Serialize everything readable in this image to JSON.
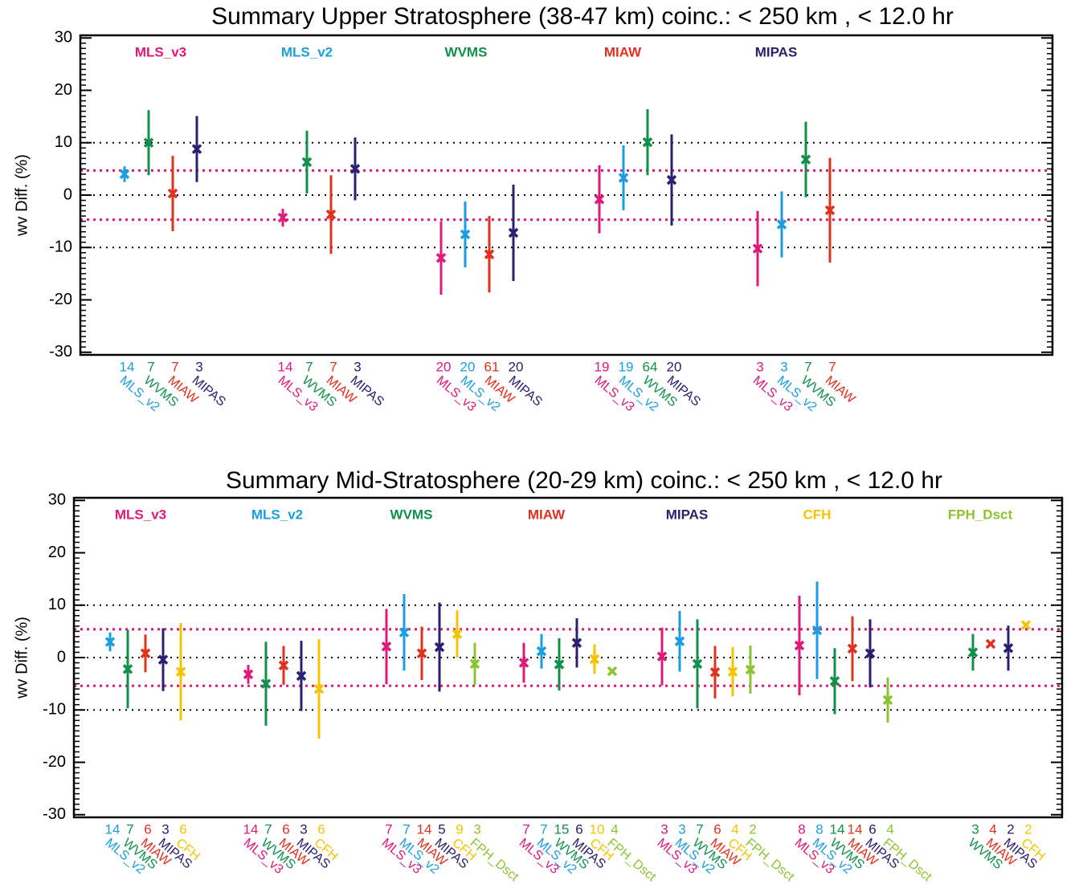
{
  "chart_data": [
    {
      "type": "errorbar",
      "title": "Summary Upper Stratosphere (38-47 km)   coinc.: < 250 km , < 12.0 hr",
      "ylabel": "wv Diff. (%)",
      "ylim": [
        -30.5,
        30.5
      ],
      "yticks": [
        -30,
        -20,
        -10,
        0,
        10,
        20,
        30
      ],
      "minor_tick_step": 1,
      "hlines": [
        {
          "value": 10,
          "color": "#000000"
        },
        {
          "value": 0,
          "color": "#000000"
        },
        {
          "value": -10,
          "color": "#000000"
        },
        {
          "value": 4.7,
          "color": "#e0187a"
        },
        {
          "value": -4.7,
          "color": "#e0187a"
        }
      ],
      "groups": [
        {
          "name": "MLS_v3",
          "color": "#e0187a",
          "members": [
            {
              "name": "MLS_v2",
              "color": "#1a9ee0",
              "n": 14,
              "value": 4,
              "err": 1.5
            },
            {
              "name": "WVMS",
              "color": "#10904a",
              "n": 7,
              "value": 10,
              "err": 6.2
            },
            {
              "name": "MIAW",
              "color": "#e0301e",
              "n": 7,
              "value": 0.3,
              "err": 7.2
            },
            {
              "name": "MIPAS",
              "color": "#2a2070",
              "n": 3,
              "value": 8.8,
              "err": 6.3
            }
          ]
        },
        {
          "name": "MLS_v2",
          "color": "#1a9ee0",
          "members": [
            {
              "name": "MLS_v3",
              "color": "#e0187a",
              "n": 14,
              "value": -4.3,
              "err": 1.7
            },
            {
              "name": "WVMS",
              "color": "#10904a",
              "n": 7,
              "value": 6.3,
              "err": 6
            },
            {
              "name": "MIAW",
              "color": "#e0301e",
              "n": 7,
              "value": -3.7,
              "err": 7.5
            },
            {
              "name": "MIPAS",
              "color": "#2a2070",
              "n": 3,
              "value": 5,
              "err": 6
            }
          ]
        },
        {
          "name": "WVMS",
          "color": "#10904a",
          "members": [
            {
              "name": "MLS_v3",
              "color": "#e0187a",
              "n": 20,
              "value": -12,
              "err": 7
            },
            {
              "name": "MLS_v2",
              "color": "#1a9ee0",
              "n": 20,
              "value": -7.5,
              "err": 6.3
            },
            {
              "name": "MIAW",
              "color": "#e0301e",
              "n": 61,
              "value": -11.3,
              "err": 7.3
            },
            {
              "name": "MIPAS",
              "color": "#2a2070",
              "n": 20,
              "value": -7.2,
              "err": 9.2
            }
          ]
        },
        {
          "name": "MIAW",
          "color": "#e0301e",
          "members": [
            {
              "name": "MLS_v3",
              "color": "#e0187a",
              "n": 19,
              "value": -0.8,
              "err": 6.5
            },
            {
              "name": "MLS_v2",
              "color": "#1a9ee0",
              "n": 19,
              "value": 3.3,
              "err": 6.2
            },
            {
              "name": "WVMS",
              "color": "#10904a",
              "n": 64,
              "value": 10.1,
              "err": 6.3
            },
            {
              "name": "MIPAS",
              "color": "#2a2070",
              "n": 20,
              "value": 2.9,
              "err": 8.7
            }
          ]
        },
        {
          "name": "MIPAS",
          "color": "#2a2070",
          "members": [
            {
              "name": "MLS_v3",
              "color": "#e0187a",
              "n": 3,
              "value": -10.2,
              "err": 7.2
            },
            {
              "name": "MLS_v2",
              "color": "#1a9ee0",
              "n": 3,
              "value": -5.6,
              "err": 6.3
            },
            {
              "name": "WVMS",
              "color": "#10904a",
              "n": 7,
              "value": 6.8,
              "err": 7.2
            },
            {
              "name": "MIAW",
              "color": "#e0301e",
              "n": 7,
              "value": -2.9,
              "err": 10
            }
          ]
        }
      ]
    },
    {
      "type": "errorbar",
      "title": "Summary Mid-Stratosphere (20-29 km)   coinc.: < 250 km , < 12.0 hr",
      "ylabel": "wv Diff. (%)",
      "ylim": [
        -30.5,
        30.5
      ],
      "yticks": [
        -30,
        -20,
        -10,
        0,
        10,
        20,
        30
      ],
      "minor_tick_step": 1,
      "hlines": [
        {
          "value": 10,
          "color": "#000000"
        },
        {
          "value": 0,
          "color": "#000000"
        },
        {
          "value": -10,
          "color": "#000000"
        },
        {
          "value": 5.4,
          "color": "#e0187a"
        },
        {
          "value": -5.4,
          "color": "#e0187a"
        }
      ],
      "groups": [
        {
          "name": "MLS_v3",
          "color": "#e0187a",
          "members": [
            {
              "name": "MLS_v2",
              "color": "#1a9ee0",
              "n": 14,
              "value": 3,
              "err": 1.8
            },
            {
              "name": "WVMS",
              "color": "#10904a",
              "n": 7,
              "value": -2.2,
              "err": 7.5
            },
            {
              "name": "MIAW",
              "color": "#e0301e",
              "n": 6,
              "value": 0.8,
              "err": 3.6
            },
            {
              "name": "MIPAS",
              "color": "#2a2070",
              "n": 3,
              "value": -0.4,
              "err": 6
            },
            {
              "name": "CFH",
              "color": "#f5c400",
              "n": 6,
              "value": -2.7,
              "err": 9.3
            }
          ]
        },
        {
          "name": "MLS_v2",
          "color": "#1a9ee0",
          "members": [
            {
              "name": "MLS_v3",
              "color": "#e0187a",
              "n": 14,
              "value": -3.2,
              "err": 1.8
            },
            {
              "name": "WVMS",
              "color": "#10904a",
              "n": 7,
              "value": -5,
              "err": 8
            },
            {
              "name": "MIAW",
              "color": "#e0301e",
              "n": 6,
              "value": -1.5,
              "err": 3.7
            },
            {
              "name": "MIPAS",
              "color": "#2a2070",
              "n": 3,
              "value": -3.5,
              "err": 6.7
            },
            {
              "name": "CFH",
              "color": "#f5c400",
              "n": 6,
              "value": -6,
              "err": 9.5
            }
          ]
        },
        {
          "name": "WVMS",
          "color": "#10904a",
          "members": [
            {
              "name": "MLS_v3",
              "color": "#e0187a",
              "n": 7,
              "value": 2.1,
              "err": 7.2
            },
            {
              "name": "MLS_v2",
              "color": "#1a9ee0",
              "n": 7,
              "value": 4.8,
              "err": 7.3
            },
            {
              "name": "MIAW",
              "color": "#e0301e",
              "n": 14,
              "value": 0.8,
              "err": 5.1
            },
            {
              "name": "MIPAS",
              "color": "#2a2070",
              "n": 5,
              "value": 2,
              "err": 8.5
            },
            {
              "name": "CFH",
              "color": "#f5c400",
              "n": 9,
              "value": 4.5,
              "err": 4.5
            },
            {
              "name": "FPH_Dsct",
              "color": "#8cc430",
              "n": 3,
              "value": -1.2,
              "err": 4
            }
          ]
        },
        {
          "name": "MIAW",
          "color": "#e0301e",
          "members": [
            {
              "name": "MLS_v3",
              "color": "#e0187a",
              "n": 7,
              "value": -1,
              "err": 3.8
            },
            {
              "name": "MLS_v2",
              "color": "#1a9ee0",
              "n": 7,
              "value": 1.2,
              "err": 3.3
            },
            {
              "name": "WVMS",
              "color": "#10904a",
              "n": 15,
              "value": -1.3,
              "err": 5
            },
            {
              "name": "MIPAS",
              "color": "#2a2070",
              "n": 6,
              "value": 2.8,
              "err": 4.7
            },
            {
              "name": "CFH",
              "color": "#f5c400",
              "n": 10,
              "value": -0.3,
              "err": 2.8
            },
            {
              "name": "FPH_Dsct",
              "color": "#8cc430",
              "n": 4,
              "value": -2.6,
              "err": 0
            }
          ]
        },
        {
          "name": "MIPAS",
          "color": "#2a2070",
          "members": [
            {
              "name": "MLS_v3",
              "color": "#e0187a",
              "n": 3,
              "value": 0.2,
              "err": 5.5
            },
            {
              "name": "MLS_v2",
              "color": "#1a9ee0",
              "n": 3,
              "value": 3.1,
              "err": 5.8
            },
            {
              "name": "WVMS",
              "color": "#10904a",
              "n": 7,
              "value": -1.2,
              "err": 8.5
            },
            {
              "name": "MIAW",
              "color": "#e0301e",
              "n": 6,
              "value": -2.8,
              "err": 5
            },
            {
              "name": "CFH",
              "color": "#f5c400",
              "n": 4,
              "value": -2.7,
              "err": 4.7
            },
            {
              "name": "FPH_Dsct",
              "color": "#8cc430",
              "n": 2,
              "value": -2.3,
              "err": 4.6
            }
          ]
        },
        {
          "name": "CFH",
          "color": "#f5c400",
          "members": [
            {
              "name": "MLS_v3",
              "color": "#e0187a",
              "n": 8,
              "value": 2.3,
              "err": 9.5
            },
            {
              "name": "MLS_v2",
              "color": "#1a9ee0",
              "n": 8,
              "value": 5.2,
              "err": 9.3
            },
            {
              "name": "WVMS",
              "color": "#10904a",
              "n": 14,
              "value": -4.5,
              "err": 6.3
            },
            {
              "name": "MIAW",
              "color": "#e0301e",
              "n": 14,
              "value": 1.7,
              "err": 6.2
            },
            {
              "name": "MIPAS",
              "color": "#2a2070",
              "n": 6,
              "value": 0.8,
              "err": 6.5
            },
            {
              "name": "FPH_Dsct",
              "color": "#8cc430",
              "n": 4,
              "value": -8.1,
              "err": 4.3
            }
          ]
        },
        {
          "name": "FPH_Dsct",
          "color": "#8cc430",
          "members": [
            {
              "name": "WVMS",
              "color": "#10904a",
              "n": 3,
              "value": 1,
              "err": 3.5
            },
            {
              "name": "MIAW",
              "color": "#e0301e",
              "n": 4,
              "value": 2.6,
              "err": 0
            },
            {
              "name": "MIPAS",
              "color": "#2a2070",
              "n": 2,
              "value": 1.8,
              "err": 4.3
            },
            {
              "name": "CFH",
              "color": "#f5c400",
              "n": 2,
              "value": 6.2,
              "err": 0
            }
          ]
        }
      ]
    }
  ]
}
